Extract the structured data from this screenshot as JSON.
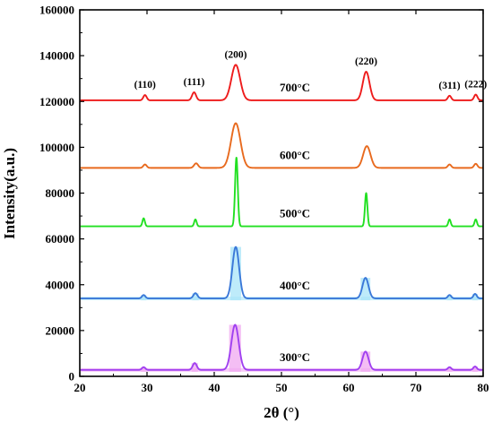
{
  "chart_data": {
    "type": "line",
    "title": "",
    "xlabel": "2θ (°)",
    "ylabel": "Intensity(a.u.)",
    "xlim": [
      20,
      80
    ],
    "ylim": [
      0,
      160000
    ],
    "xticks": [
      20,
      30,
      40,
      50,
      60,
      70,
      80
    ],
    "yticks": [
      0,
      20000,
      40000,
      60000,
      80000,
      100000,
      120000,
      140000,
      160000
    ],
    "grid": false,
    "legend": "none",
    "peak_annotations": [
      {
        "label": "(110)",
        "x": 29.7
      },
      {
        "label": "(111)",
        "x": 37.0
      },
      {
        "label": "(200)",
        "x": 43.2
      },
      {
        "label": "(220)",
        "x": 62.6
      },
      {
        "label": "(311)",
        "x": 75.0
      },
      {
        "label": "(222)",
        "x": 78.9
      }
    ],
    "series": [
      {
        "name": "300°C",
        "color": "#a040f0",
        "glow": "#f0a8f0",
        "baseline": 2800,
        "peaks": [
          {
            "x": 29.5,
            "y": 4000,
            "width": 0.25
          },
          {
            "x": 37.1,
            "y": 5800,
            "width": 0.3
          },
          {
            "x": 43.1,
            "y": 22500,
            "width": 0.55
          },
          {
            "x": 62.5,
            "y": 10800,
            "width": 0.45
          },
          {
            "x": 75.0,
            "y": 4000,
            "width": 0.25
          },
          {
            "x": 78.8,
            "y": 4300,
            "width": 0.25
          }
        ]
      },
      {
        "name": "400°C",
        "color": "#3a78d8",
        "glow": "#a8e4f8",
        "baseline": 34000,
        "peaks": [
          {
            "x": 29.5,
            "y": 35500,
            "width": 0.25
          },
          {
            "x": 37.2,
            "y": 36300,
            "width": 0.3
          },
          {
            "x": 43.2,
            "y": 56500,
            "width": 0.5
          },
          {
            "x": 62.5,
            "y": 43000,
            "width": 0.45
          },
          {
            "x": 75.0,
            "y": 35500,
            "width": 0.25
          },
          {
            "x": 78.8,
            "y": 36000,
            "width": 0.25
          }
        ]
      },
      {
        "name": "500°C",
        "color": "#22e022",
        "glow": "",
        "baseline": 65500,
        "peaks": [
          {
            "x": 29.5,
            "y": 69000,
            "width": 0.18
          },
          {
            "x": 37.2,
            "y": 68500,
            "width": 0.18
          },
          {
            "x": 43.3,
            "y": 95500,
            "width": 0.2
          },
          {
            "x": 62.6,
            "y": 80000,
            "width": 0.18
          },
          {
            "x": 75.0,
            "y": 68500,
            "width": 0.18
          },
          {
            "x": 78.9,
            "y": 68500,
            "width": 0.18
          }
        ]
      },
      {
        "name": "600°C",
        "color": "#e86a1e",
        "glow": "",
        "baseline": 91000,
        "peaks": [
          {
            "x": 29.7,
            "y": 92500,
            "width": 0.25
          },
          {
            "x": 37.3,
            "y": 93000,
            "width": 0.3
          },
          {
            "x": 43.2,
            "y": 110500,
            "width": 0.7
          },
          {
            "x": 62.7,
            "y": 100500,
            "width": 0.55
          },
          {
            "x": 75.0,
            "y": 92500,
            "width": 0.25
          },
          {
            "x": 78.9,
            "y": 92800,
            "width": 0.25
          }
        ]
      },
      {
        "name": "700°C",
        "color": "#ee1c1c",
        "glow": "",
        "baseline": 120500,
        "peaks": [
          {
            "x": 29.7,
            "y": 122800,
            "width": 0.25
          },
          {
            "x": 37.0,
            "y": 124000,
            "width": 0.3
          },
          {
            "x": 43.2,
            "y": 136000,
            "width": 0.65
          },
          {
            "x": 62.6,
            "y": 133000,
            "width": 0.5
          },
          {
            "x": 75.0,
            "y": 122500,
            "width": 0.25
          },
          {
            "x": 78.9,
            "y": 123000,
            "width": 0.25
          }
        ]
      }
    ]
  }
}
